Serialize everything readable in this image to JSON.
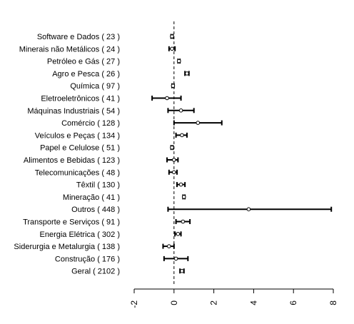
{
  "chart_data": {
    "type": "forest",
    "title": "",
    "xlabel": "",
    "ylabel": "",
    "xlim": [
      -2,
      8
    ],
    "x_ticks": [
      -2,
      0,
      2,
      4,
      6,
      8
    ],
    "x_tick_labels": [
      "-2",
      "0",
      "2",
      "4",
      "6",
      "8"
    ],
    "reference_line": 0,
    "rows": [
      {
        "label": "Software e Dados ( 23 )",
        "estimate": -0.1,
        "lower": -0.15,
        "upper": -0.05
      },
      {
        "label": "Minerais não Metálicos ( 24 )",
        "estimate": -0.1,
        "lower": -0.25,
        "upper": 0.05
      },
      {
        "label": "Petróleo e Gás ( 27 )",
        "estimate": 0.25,
        "lower": 0.2,
        "upper": 0.3
      },
      {
        "label": "Agro e Pesca ( 26 )",
        "estimate": 0.65,
        "lower": 0.55,
        "upper": 0.75
      },
      {
        "label": "Química ( 97 )",
        "estimate": -0.05,
        "lower": -0.1,
        "upper": 0.0
      },
      {
        "label": "Eletroeletrônicos ( 41 )",
        "estimate": -0.35,
        "lower": -1.1,
        "upper": 0.35
      },
      {
        "label": "Máquinas Industriais ( 54 )",
        "estimate": 0.35,
        "lower": -0.3,
        "upper": 1.0
      },
      {
        "label": "Comércio ( 128 )",
        "estimate": 1.2,
        "lower": 0.0,
        "upper": 2.4
      },
      {
        "label": "Veículos e Peças ( 134 )",
        "estimate": 0.4,
        "lower": 0.1,
        "upper": 0.65
      },
      {
        "label": "Papel e Celulose ( 51 )",
        "estimate": -0.1,
        "lower": -0.15,
        "upper": -0.05
      },
      {
        "label": "Alimentos e Bebidas ( 123 )",
        "estimate": 0.0,
        "lower": -0.35,
        "upper": 0.2
      },
      {
        "label": "Telecomunicações ( 48 )",
        "estimate": 0.0,
        "lower": -0.25,
        "upper": 0.15
      },
      {
        "label": "Têxtil ( 130 )",
        "estimate": 0.35,
        "lower": 0.15,
        "upper": 0.55
      },
      {
        "label": "Mineração ( 41 )",
        "estimate": 0.5,
        "lower": 0.45,
        "upper": 0.55
      },
      {
        "label": "Outros ( 448 )",
        "estimate": 3.75,
        "lower": -0.3,
        "upper": 7.9
      },
      {
        "label": "Transporte e Serviços ( 91 )",
        "estimate": 0.45,
        "lower": 0.1,
        "upper": 0.8
      },
      {
        "label": "Energia Elétrica ( 302 )",
        "estimate": 0.2,
        "lower": 0.05,
        "upper": 0.35
      },
      {
        "label": "Siderurgia e Metalurgia ( 138 )",
        "estimate": -0.25,
        "lower": -0.55,
        "upper": 0.0
      },
      {
        "label": "Construção ( 176 )",
        "estimate": 0.1,
        "lower": -0.5,
        "upper": 0.7
      },
      {
        "label": "Geral ( 2102 )",
        "estimate": 0.4,
        "lower": 0.3,
        "upper": 0.5
      }
    ]
  }
}
